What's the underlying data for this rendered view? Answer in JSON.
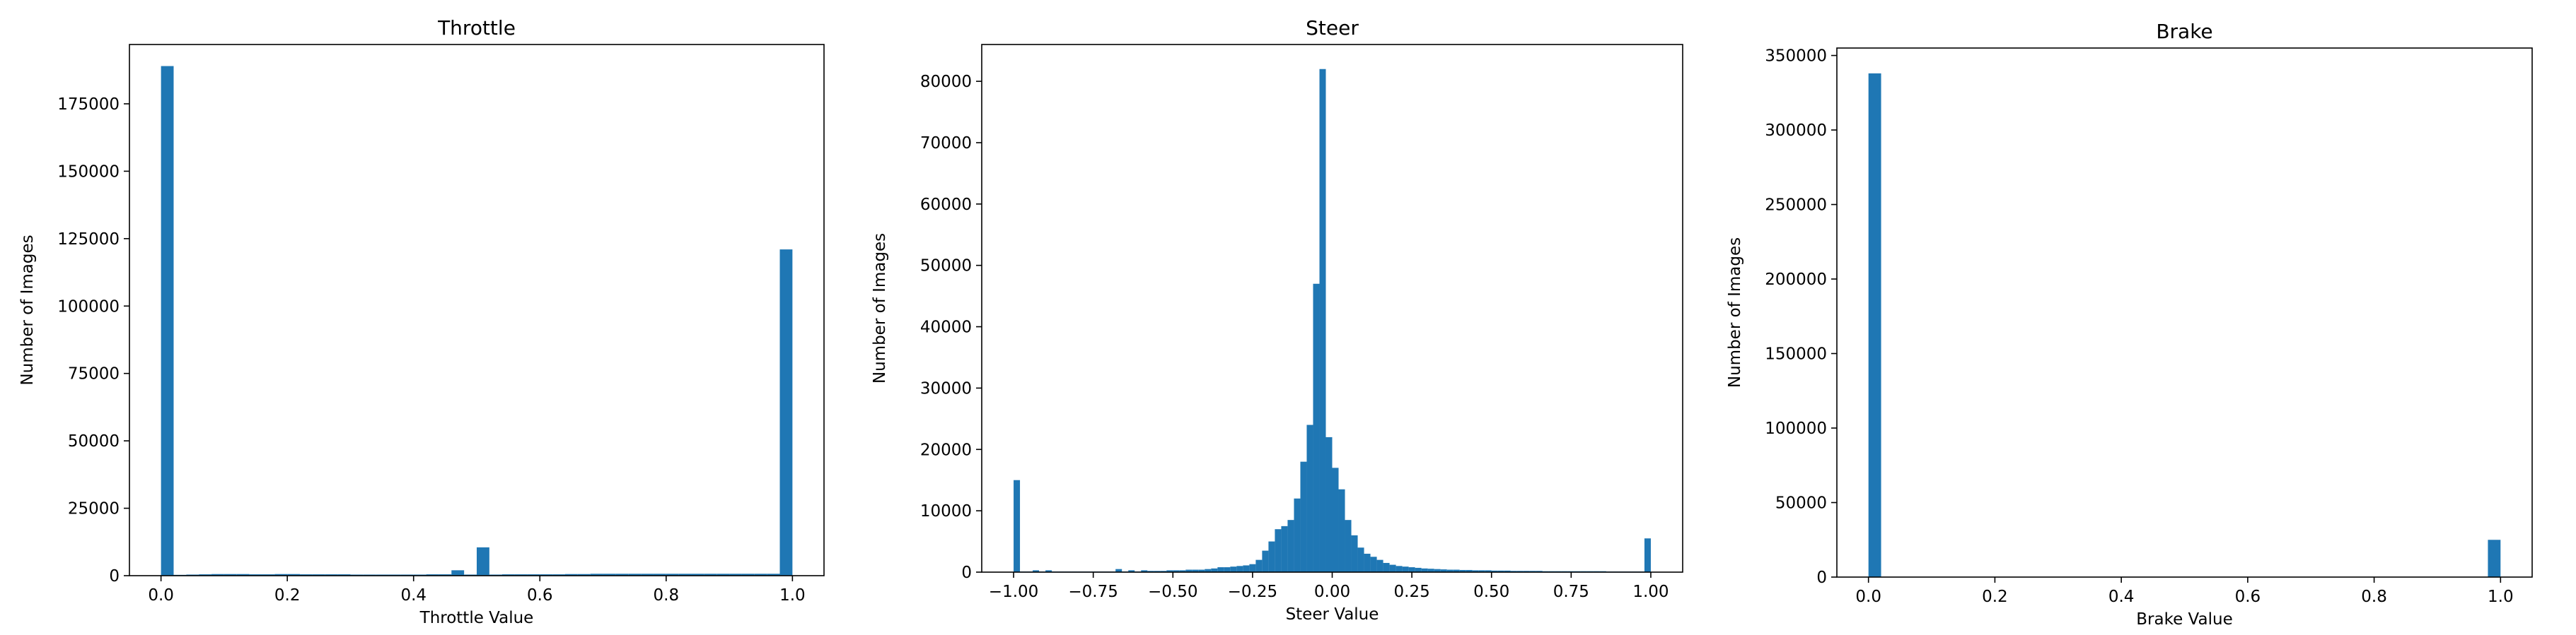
{
  "figure": {
    "bar_color": "#1f77b4",
    "axes_color": "#000000",
    "background": "#ffffff"
  },
  "chart_data": [
    {
      "type": "bar",
      "title": "Throttle",
      "xlabel": "Throttle Value",
      "ylabel": "Number of Images",
      "xlim": [
        -0.05,
        1.05
      ],
      "ylim": [
        0,
        197000
      ],
      "xticks": [
        0.0,
        0.2,
        0.4,
        0.6,
        0.8,
        1.0
      ],
      "xtick_labels": [
        "0.0",
        "0.2",
        "0.4",
        "0.6",
        "0.8",
        "1.0"
      ],
      "yticks": [
        0,
        25000,
        50000,
        75000,
        100000,
        125000,
        150000,
        175000
      ],
      "ytick_labels": [
        "0",
        "25000",
        "50000",
        "75000",
        "100000",
        "125000",
        "150000",
        "175000"
      ],
      "bin_width": 0.02,
      "bins_start": [
        0.0,
        0.02,
        0.04,
        0.06,
        0.08,
        0.1,
        0.12,
        0.14,
        0.16,
        0.18,
        0.2,
        0.22,
        0.24,
        0.26,
        0.28,
        0.3,
        0.32,
        0.34,
        0.36,
        0.38,
        0.4,
        0.42,
        0.44,
        0.46,
        0.48,
        0.5,
        0.52,
        0.54,
        0.56,
        0.58,
        0.6,
        0.62,
        0.64,
        0.66,
        0.68,
        0.7,
        0.72,
        0.74,
        0.76,
        0.78,
        0.8,
        0.82,
        0.84,
        0.86,
        0.88,
        0.9,
        0.92,
        0.94,
        0.96,
        0.98
      ],
      "values": [
        189000,
        300,
        400,
        500,
        600,
        600,
        600,
        500,
        500,
        600,
        600,
        500,
        500,
        500,
        500,
        400,
        400,
        400,
        400,
        400,
        400,
        500,
        500,
        2000,
        400,
        10500,
        400,
        500,
        500,
        500,
        500,
        500,
        600,
        600,
        700,
        700,
        700,
        700,
        700,
        700,
        700,
        700,
        700,
        700,
        700,
        700,
        700,
        700,
        700,
        121000
      ]
    },
    {
      "type": "bar",
      "title": "Steer",
      "xlabel": "Steer Value",
      "ylabel": "Number of Images",
      "xlim": [
        -1.1,
        1.1
      ],
      "ylim": [
        0,
        86000
      ],
      "xticks": [
        -1.0,
        -0.75,
        -0.5,
        -0.25,
        0.0,
        0.25,
        0.5,
        0.75,
        1.0
      ],
      "xtick_labels": [
        "−1.00",
        "−0.75",
        "−0.50",
        "−0.25",
        "0.00",
        "0.25",
        "0.50",
        "0.75",
        "1.00"
      ],
      "yticks": [
        0,
        10000,
        20000,
        30000,
        40000,
        50000,
        60000,
        70000,
        80000
      ],
      "ytick_labels": [
        "0",
        "10000",
        "20000",
        "30000",
        "40000",
        "50000",
        "60000",
        "70000",
        "80000"
      ],
      "bin_width": 0.02,
      "bins_start": [
        -1.0,
        -0.98,
        -0.96,
        -0.94,
        -0.92,
        -0.9,
        -0.88,
        -0.86,
        -0.84,
        -0.82,
        -0.8,
        -0.78,
        -0.76,
        -0.74,
        -0.72,
        -0.7,
        -0.68,
        -0.66,
        -0.64,
        -0.62,
        -0.6,
        -0.58,
        -0.56,
        -0.54,
        -0.52,
        -0.5,
        -0.48,
        -0.46,
        -0.44,
        -0.42,
        -0.4,
        -0.38,
        -0.36,
        -0.34,
        -0.32,
        -0.3,
        -0.28,
        -0.26,
        -0.24,
        -0.22,
        -0.2,
        -0.18,
        -0.16,
        -0.14,
        -0.12,
        -0.1,
        -0.08,
        -0.06,
        -0.04,
        -0.02,
        0.0,
        0.02,
        0.04,
        0.06,
        0.08,
        0.1,
        0.12,
        0.14,
        0.16,
        0.18,
        0.2,
        0.22,
        0.24,
        0.26,
        0.28,
        0.3,
        0.32,
        0.34,
        0.36,
        0.38,
        0.4,
        0.42,
        0.44,
        0.46,
        0.48,
        0.5,
        0.52,
        0.54,
        0.56,
        0.58,
        0.6,
        0.62,
        0.64,
        0.66,
        0.68,
        0.7,
        0.72,
        0.74,
        0.76,
        0.78,
        0.8,
        0.82,
        0.84,
        0.86,
        0.88,
        0.9,
        0.92,
        0.94,
        0.96,
        0.98
      ],
      "values": [
        15000,
        100,
        100,
        300,
        100,
        300,
        100,
        100,
        100,
        100,
        100,
        100,
        100,
        100,
        100,
        100,
        500,
        100,
        300,
        100,
        300,
        200,
        200,
        200,
        300,
        300,
        300,
        400,
        400,
        400,
        500,
        600,
        800,
        800,
        900,
        1000,
        1100,
        1300,
        2000,
        3500,
        5000,
        7000,
        7500,
        8500,
        12000,
        18000,
        24000,
        47000,
        82000,
        22000,
        17000,
        13500,
        8500,
        6000,
        4000,
        3000,
        2500,
        2000,
        1500,
        1200,
        1000,
        900,
        800,
        700,
        600,
        550,
        500,
        450,
        400,
        400,
        350,
        350,
        300,
        300,
        300,
        250,
        250,
        250,
        200,
        200,
        200,
        200,
        200,
        150,
        150,
        150,
        150,
        150,
        150,
        150,
        150,
        150,
        150,
        100,
        100,
        100,
        100,
        100,
        100,
        5500
      ]
    },
    {
      "type": "bar",
      "title": "Brake",
      "xlabel": "Brake Value",
      "ylabel": "Number of Images",
      "xlim": [
        -0.05,
        1.05
      ],
      "ylim": [
        0,
        355000
      ],
      "xticks": [
        0.0,
        0.2,
        0.4,
        0.6,
        0.8,
        1.0
      ],
      "xtick_labels": [
        "0.0",
        "0.2",
        "0.4",
        "0.6",
        "0.8",
        "1.0"
      ],
      "yticks": [
        0,
        50000,
        100000,
        150000,
        200000,
        250000,
        300000,
        350000
      ],
      "ytick_labels": [
        "0",
        "50000",
        "100000",
        "150000",
        "200000",
        "250000",
        "300000",
        "350000"
      ],
      "bin_width": 0.02,
      "bins_start": [
        0.0,
        0.98
      ],
      "values": [
        338000,
        25000
      ]
    }
  ]
}
